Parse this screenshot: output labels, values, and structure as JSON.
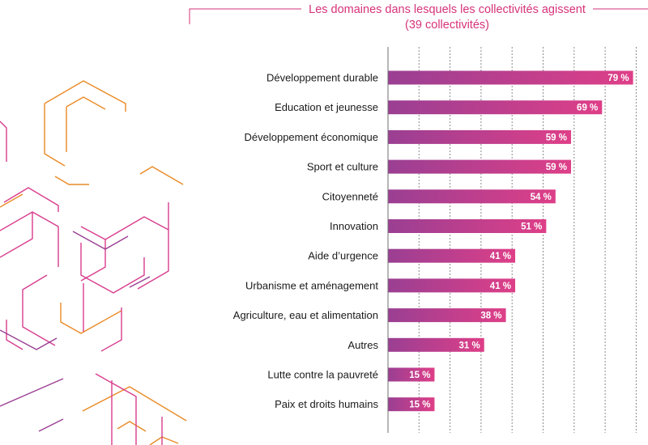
{
  "chart_data": {
    "type": "bar",
    "orientation": "horizontal",
    "title": "Les domaines dans lesquels les collectivités agissent",
    "subtitle": "(39 collectivités)",
    "categories": [
      "Développement durable",
      "Education et jeunesse",
      "Développement économique",
      "Sport et culture",
      "Citoyenneté",
      "Innovation",
      "Aide d’urgence",
      "Urbanisme et aménagement",
      "Agriculture, eau et alimentation",
      "Autres",
      "Lutte contre la pauvreté",
      "Paix et droits humains"
    ],
    "values": [
      79,
      69,
      59,
      59,
      54,
      51,
      41,
      41,
      38,
      31,
      15,
      15
    ],
    "value_labels": [
      "79 %",
      "69 %",
      "59 %",
      "59 %",
      "54 %",
      "51 %",
      "41 %",
      "41 %",
      "38 %",
      "31 %",
      "15 %",
      "15 %"
    ],
    "xlim": [
      0,
      80
    ],
    "grid": true,
    "colors": {
      "bar_start": "#9a3f93",
      "bar_end": "#de3f88",
      "title": "#d6337a"
    }
  }
}
